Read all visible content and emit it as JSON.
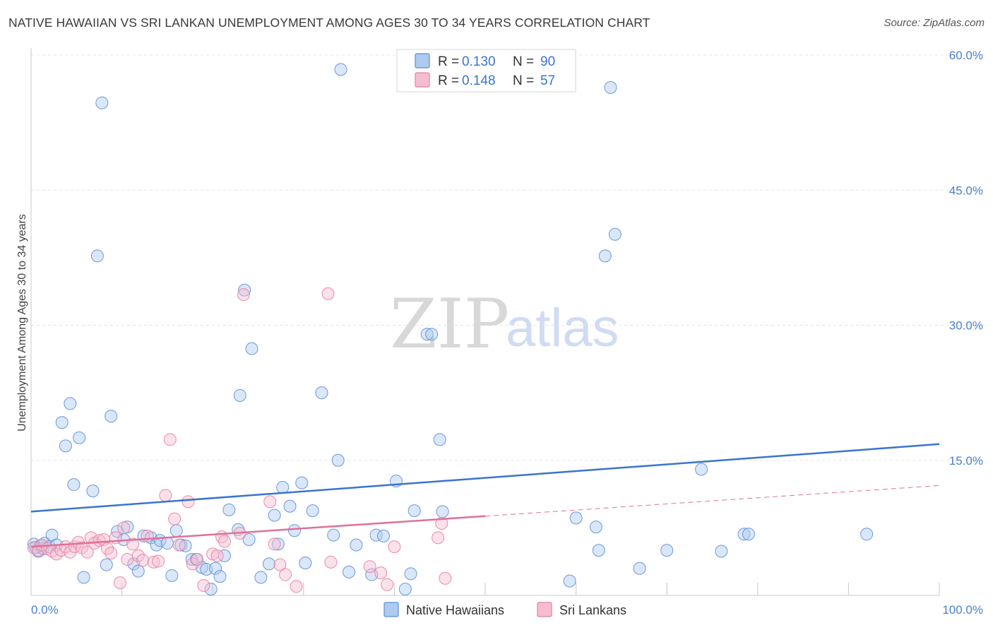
{
  "title": "NATIVE HAWAIIAN VS SRI LANKAN UNEMPLOYMENT AMONG AGES 30 TO 34 YEARS CORRELATION CHART",
  "source": "Source: ZipAtlas.com",
  "watermark": {
    "zip": "ZIP",
    "atlas": "atlas"
  },
  "colors": {
    "blue": "#5b8fd6",
    "blue_fill": "#aecaef",
    "blue_line": "#3a74d0",
    "pink": "#e77fa3",
    "pink_fill": "#f6bdd0",
    "pink_line": "#e0709a",
    "grid": "#e4e4e4"
  },
  "legend": {
    "rows": [
      {
        "r_label": "R = ",
        "r_value": "0.130",
        "n_label": "N = ",
        "n_value": "90"
      },
      {
        "r_label": "R = ",
        "r_value": "0.148",
        "n_label": "N = ",
        "n_value": "57"
      }
    ]
  },
  "chart_data": {
    "type": "scatter",
    "title": "NATIVE HAWAIIAN VS SRI LANKAN UNEMPLOYMENT AMONG AGES 30 TO 34 YEARS CORRELATION CHART",
    "xlabel": "",
    "ylabel": "Unemployment Among Ages 30 to 34 years",
    "xlim": [
      0,
      100
    ],
    "ylim": [
      0,
      60
    ],
    "x_ticks": [
      "0.0%",
      "100.0%"
    ],
    "y_ticks": [
      {
        "value": 15,
        "label": "15.0%"
      },
      {
        "value": 30,
        "label": "30.0%"
      },
      {
        "value": 45,
        "label": "45.0%"
      },
      {
        "value": 60,
        "label": "60.0%"
      }
    ],
    "grid": true,
    "legend_position": "top-center",
    "series": [
      {
        "name": "Native Hawaiians",
        "color": "#5b8fd6",
        "trend": {
          "x": [
            0,
            100
          ],
          "y": [
            9.3,
            16.8
          ]
        },
        "points": [
          [
            0.3,
            5.7
          ],
          [
            0.5,
            5.3
          ],
          [
            0.8,
            4.9
          ],
          [
            1.0,
            5.5
          ],
          [
            1.3,
            5.2
          ],
          [
            1.5,
            5.8
          ],
          [
            2.0,
            5.4
          ],
          [
            2.3,
            6.7
          ],
          [
            2.8,
            5.6
          ],
          [
            3.4,
            19.2
          ],
          [
            3.8,
            16.6
          ],
          [
            4.3,
            21.3
          ],
          [
            4.7,
            12.3
          ],
          [
            5.3,
            17.5
          ],
          [
            5.8,
            2.0
          ],
          [
            6.8,
            11.6
          ],
          [
            7.3,
            37.7
          ],
          [
            7.8,
            54.7
          ],
          [
            8.3,
            3.4
          ],
          [
            8.8,
            19.9
          ],
          [
            9.5,
            7.1
          ],
          [
            10.2,
            6.2
          ],
          [
            10.6,
            7.6
          ],
          [
            11.3,
            3.5
          ],
          [
            11.8,
            2.7
          ],
          [
            12.4,
            6.6
          ],
          [
            13.2,
            6.4
          ],
          [
            13.8,
            5.6
          ],
          [
            14.2,
            6.1
          ],
          [
            15.0,
            5.8
          ],
          [
            15.5,
            2.2
          ],
          [
            16.0,
            7.2
          ],
          [
            16.5,
            5.6
          ],
          [
            17.0,
            5.5
          ],
          [
            17.7,
            4.0
          ],
          [
            18.2,
            4.0
          ],
          [
            18.8,
            3.1
          ],
          [
            19.3,
            2.9
          ],
          [
            19.8,
            0.7
          ],
          [
            20.3,
            3.0
          ],
          [
            20.8,
            2.1
          ],
          [
            21.3,
            4.4
          ],
          [
            21.8,
            9.5
          ],
          [
            22.8,
            7.3
          ],
          [
            23.0,
            22.2
          ],
          [
            23.5,
            33.9
          ],
          [
            24.0,
            6.2
          ],
          [
            24.3,
            27.4
          ],
          [
            25.3,
            2.0
          ],
          [
            26.2,
            3.5
          ],
          [
            26.8,
            8.9
          ],
          [
            27.2,
            5.7
          ],
          [
            27.7,
            12.0
          ],
          [
            28.5,
            9.9
          ],
          [
            29.0,
            7.2
          ],
          [
            29.8,
            12.5
          ],
          [
            30.2,
            3.6
          ],
          [
            31.0,
            9.4
          ],
          [
            32.0,
            22.5
          ],
          [
            33.3,
            6.7
          ],
          [
            33.8,
            15.0
          ],
          [
            34.1,
            58.4
          ],
          [
            35.0,
            2.6
          ],
          [
            35.8,
            5.6
          ],
          [
            37.5,
            2.3
          ],
          [
            38.0,
            6.7
          ],
          [
            38.8,
            6.6
          ],
          [
            40.2,
            12.7
          ],
          [
            41.2,
            0.7
          ],
          [
            41.8,
            2.4
          ],
          [
            42.2,
            9.4
          ],
          [
            43.6,
            29.0
          ],
          [
            44.1,
            29.0
          ],
          [
            45.0,
            17.3
          ],
          [
            45.3,
            9.3
          ],
          [
            57.5,
            56.6
          ],
          [
            60.0,
            8.6
          ],
          [
            59.3,
            1.6
          ],
          [
            62.2,
            7.6
          ],
          [
            62.5,
            5.0
          ],
          [
            63.2,
            37.7
          ],
          [
            63.8,
            56.4
          ],
          [
            64.3,
            40.1
          ],
          [
            67.0,
            3.0
          ],
          [
            70.0,
            5.0
          ],
          [
            73.8,
            14.0
          ],
          [
            76.0,
            4.9
          ],
          [
            78.5,
            6.8
          ],
          [
            79.0,
            6.8
          ],
          [
            92.0,
            6.8
          ]
        ]
      },
      {
        "name": "Sri Lankans",
        "color": "#e77fa3",
        "trend": {
          "x": [
            0,
            50
          ],
          "y": [
            5.4,
            8.8
          ]
        },
        "trend_extension": {
          "x": [
            50,
            100
          ],
          "y": [
            8.8,
            12.2
          ]
        },
        "points": [
          [
            0.3,
            5.3
          ],
          [
            0.8,
            5.0
          ],
          [
            1.2,
            5.6
          ],
          [
            1.8,
            5.2
          ],
          [
            2.3,
            4.9
          ],
          [
            2.8,
            4.6
          ],
          [
            3.3,
            5.0
          ],
          [
            3.8,
            5.4
          ],
          [
            4.3,
            4.8
          ],
          [
            4.8,
            5.4
          ],
          [
            5.2,
            5.9
          ],
          [
            5.6,
            5.3
          ],
          [
            6.2,
            4.8
          ],
          [
            6.6,
            6.4
          ],
          [
            7.0,
            5.8
          ],
          [
            7.5,
            6.1
          ],
          [
            8.0,
            6.2
          ],
          [
            8.4,
            5.2
          ],
          [
            8.8,
            4.7
          ],
          [
            9.3,
            6.4
          ],
          [
            9.8,
            1.4
          ],
          [
            10.2,
            7.5
          ],
          [
            10.6,
            4.0
          ],
          [
            11.2,
            5.7
          ],
          [
            11.8,
            4.4
          ],
          [
            12.3,
            3.9
          ],
          [
            12.8,
            6.6
          ],
          [
            13.5,
            3.7
          ],
          [
            14.0,
            3.8
          ],
          [
            14.8,
            11.1
          ],
          [
            15.3,
            17.3
          ],
          [
            15.8,
            8.5
          ],
          [
            16.3,
            5.6
          ],
          [
            17.3,
            10.4
          ],
          [
            17.8,
            3.5
          ],
          [
            18.3,
            4.0
          ],
          [
            19.0,
            1.1
          ],
          [
            20.0,
            4.6
          ],
          [
            20.5,
            4.4
          ],
          [
            21.0,
            6.5
          ],
          [
            21.3,
            6.0
          ],
          [
            23.0,
            6.9
          ],
          [
            23.4,
            33.4
          ],
          [
            26.3,
            10.4
          ],
          [
            26.8,
            5.7
          ],
          [
            27.4,
            3.4
          ],
          [
            28.0,
            2.3
          ],
          [
            29.2,
            1.0
          ],
          [
            32.7,
            33.5
          ],
          [
            33.0,
            3.7
          ],
          [
            37.3,
            3.2
          ],
          [
            38.5,
            2.5
          ],
          [
            39.2,
            1.2
          ],
          [
            40.0,
            5.4
          ],
          [
            44.8,
            6.4
          ],
          [
            45.2,
            8.0
          ],
          [
            45.6,
            1.9
          ]
        ]
      }
    ]
  },
  "bottom_legend": [
    "Native Hawaiians",
    "Sri Lankans"
  ]
}
